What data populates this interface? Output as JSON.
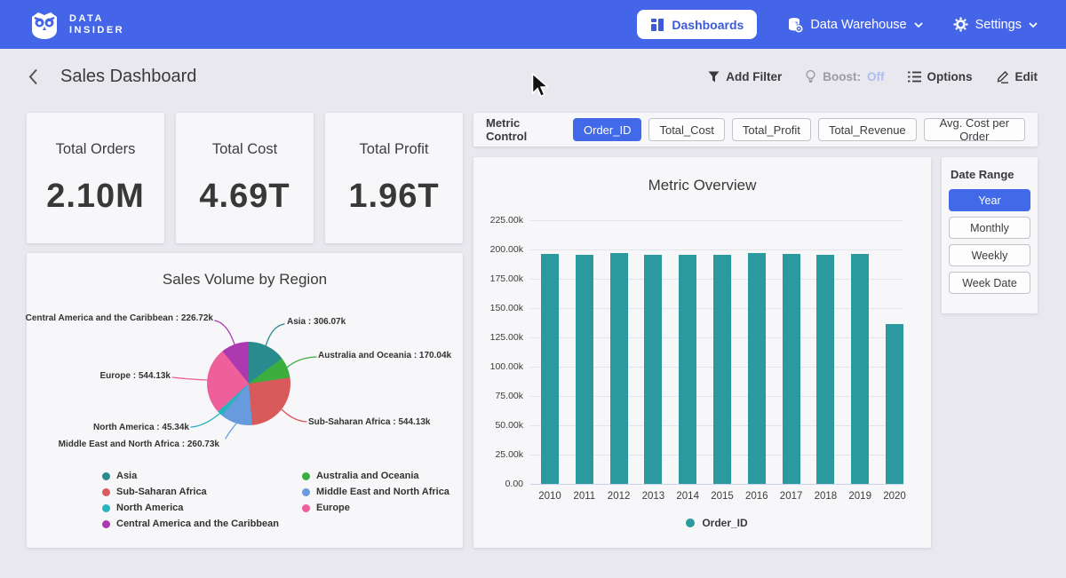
{
  "nav": {
    "brand_line1": "DATA",
    "brand_line2": "INSIDER",
    "dashboards_label": "Dashboards",
    "data_warehouse_label": "Data Warehouse",
    "settings_label": "Settings"
  },
  "header": {
    "title": "Sales Dashboard",
    "add_filter_label": "Add Filter",
    "boost_label": "Boost:",
    "boost_value": "Off",
    "options_label": "Options",
    "edit_label": "Edit"
  },
  "kpis": [
    {
      "label": "Total Orders",
      "value": "2.10M"
    },
    {
      "label": "Total Cost",
      "value": "4.69T"
    },
    {
      "label": "Total Profit",
      "value": "1.96T"
    }
  ],
  "metric_control": {
    "label": "Metric Control",
    "options": [
      "Order_ID",
      "Total_Cost",
      "Total_Profit",
      "Total_Revenue",
      "Avg. Cost per Order"
    ],
    "selected": "Order_ID"
  },
  "date_range": {
    "label": "Date Range",
    "options": [
      "Year",
      "Monthly",
      "Weekly",
      "Week Date"
    ],
    "selected": "Year"
  },
  "colors": {
    "nav_blue": "#4565e8",
    "accent_blue": "#4169e8",
    "bar_teal": "#2a9a9e",
    "boost_off": "#aebdf0"
  },
  "chart_data": [
    {
      "type": "pie",
      "title": "Sales Volume by Region",
      "slices": [
        {
          "label": "Asia",
          "callout": "Asia : 306.07k",
          "value": 306070,
          "color": "#2a8b8f"
        },
        {
          "label": "Australia and Oceania",
          "callout": "Australia and Oceania : 170.04k",
          "value": 170040,
          "color": "#3cad3f"
        },
        {
          "label": "Sub-Saharan Africa",
          "callout": "Sub-Saharan Africa : 544.13k",
          "value": 544130,
          "color": "#d85a5a"
        },
        {
          "label": "Middle East and North Africa",
          "callout": "Middle East and North Africa : 260.73k",
          "value": 260730,
          "color": "#689ade"
        },
        {
          "label": "North America",
          "callout": "North America : 45.34k",
          "value": 45340,
          "color": "#29b2c0"
        },
        {
          "label": "Europe",
          "callout": "Europe : 544.13k",
          "value": 544130,
          "color": "#ef5f9c"
        },
        {
          "label": "Central America and the Caribbean",
          "callout": "Central America and the Caribbean : 226.72k",
          "value": 226720,
          "color": "#ac39b0"
        }
      ],
      "legend_position": "bottom"
    },
    {
      "type": "bar",
      "title": "Metric Overview",
      "categories": [
        "2010",
        "2011",
        "2012",
        "2013",
        "2014",
        "2015",
        "2016",
        "2017",
        "2018",
        "2019",
        "2020"
      ],
      "series": [
        {
          "name": "Order_ID",
          "color": "#2a9a9e",
          "values": [
            195900,
            195700,
            196800,
            195600,
            195800,
            195700,
            196900,
            196100,
            195700,
            196000,
            136400
          ]
        }
      ],
      "ylim": [
        0,
        225000
      ],
      "ytick_labels": [
        "225.00k",
        "200.00k",
        "175.00k",
        "150.00k",
        "125.00k",
        "100.00k",
        "75.00k",
        "50.00k",
        "25.00k",
        "0.00"
      ],
      "grid": true,
      "legend_position": "bottom"
    }
  ]
}
